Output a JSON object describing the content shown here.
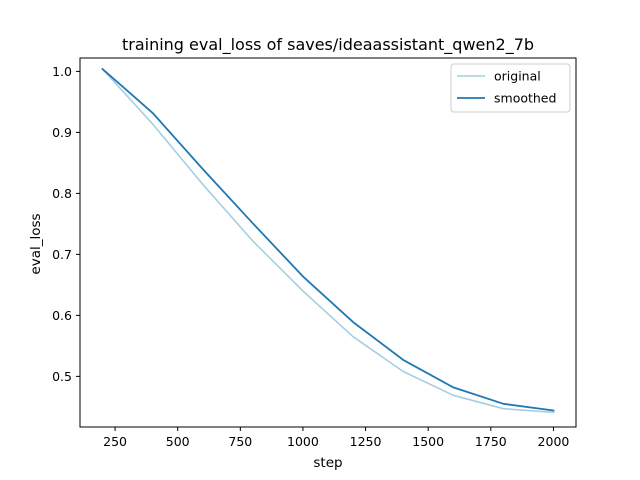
{
  "chart_data": {
    "type": "line",
    "title": "training eval_loss of saves/ideaassistant_qwen2_7b",
    "xlabel": "step",
    "ylabel": "eval_loss",
    "xlim": [
      110,
      2090
    ],
    "ylim": [
      0.417,
      1.022
    ],
    "xticks": [
      250,
      500,
      750,
      1000,
      1250,
      1500,
      1750,
      2000
    ],
    "xtick_labels": [
      "250",
      "500",
      "750",
      "1000",
      "1250",
      "1500",
      "1750",
      "2000"
    ],
    "yticks": [
      0.5,
      0.6,
      0.7,
      0.8,
      0.9,
      1.0
    ],
    "ytick_labels": [
      "0.5",
      "0.6",
      "0.7",
      "0.8",
      "0.9",
      "1.0"
    ],
    "grid": false,
    "legend_position": "top-right",
    "x": [
      200,
      400,
      600,
      800,
      1000,
      1200,
      1400,
      1600,
      1800,
      2000
    ],
    "series": [
      {
        "name": "original",
        "color": "#a6cee3",
        "values": [
          1.004,
          0.914,
          0.815,
          0.722,
          0.64,
          0.565,
          0.508,
          0.469,
          0.447,
          0.441
        ]
      },
      {
        "name": "smoothed",
        "color": "#1f78b4",
        "values": [
          1.004,
          0.932,
          0.84,
          0.751,
          0.664,
          0.589,
          0.527,
          0.482,
          0.455,
          0.444
        ]
      }
    ]
  }
}
